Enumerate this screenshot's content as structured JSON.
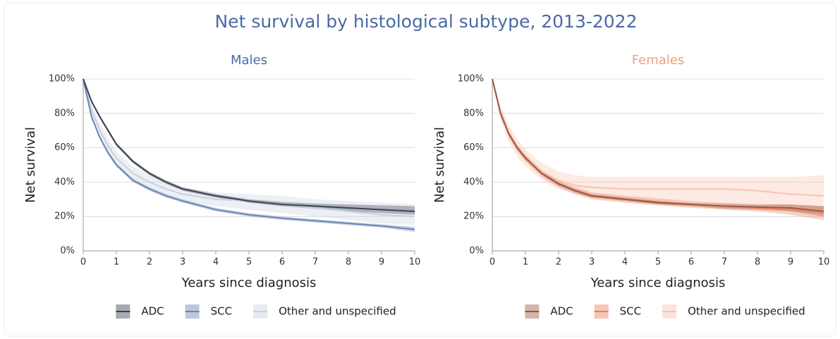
{
  "title": "Net survival by histological subtype, 2013-2022",
  "chart_data": [
    {
      "type": "line",
      "title": "Males",
      "title_color": "#4a6aa5",
      "xlabel": "Years since diagnosis",
      "ylabel": "Net survival",
      "x": [
        0,
        0.25,
        0.5,
        0.75,
        1,
        1.5,
        2,
        2.5,
        3,
        4,
        5,
        6,
        7,
        8,
        9,
        10
      ],
      "xlim": [
        0,
        10
      ],
      "xticks": [
        0,
        1,
        2,
        3,
        4,
        5,
        6,
        7,
        8,
        9,
        10
      ],
      "ylim": [
        0,
        100
      ],
      "yticks": [
        {
          "value": 0,
          "label": "0%"
        },
        {
          "value": 20,
          "label": "20%"
        },
        {
          "value": 40,
          "label": "40%"
        },
        {
          "value": 60,
          "label": "60%"
        },
        {
          "value": 80,
          "label": "80%"
        },
        {
          "value": 100,
          "label": "100%"
        }
      ],
      "grid": true,
      "series": [
        {
          "name": "ADC",
          "color": "#3b4252",
          "values": [
            100,
            87,
            78,
            70,
            62,
            52,
            45,
            40,
            36,
            32,
            29,
            27,
            26,
            25,
            24,
            23
          ],
          "lower": [
            100,
            86,
            77,
            69,
            61,
            51,
            44,
            39,
            35,
            31,
            28,
            26,
            24.5,
            23,
            22,
            21
          ],
          "upper": [
            100,
            88,
            79,
            71,
            63,
            53,
            46,
            41,
            37,
            33,
            30,
            28.5,
            27.5,
            27,
            26.5,
            26
          ]
        },
        {
          "name": "SCC",
          "color": "#6b86b4",
          "values": [
            100,
            78,
            66,
            57,
            50,
            41,
            36,
            32,
            29,
            24,
            21,
            19,
            17.5,
            16,
            14.5,
            12.5
          ],
          "lower": [
            100,
            77,
            65,
            56,
            49,
            40,
            35,
            31,
            28,
            23,
            20,
            18,
            16.5,
            15,
            13.5,
            11
          ],
          "upper": [
            100,
            79,
            67,
            58,
            51,
            42,
            37,
            33,
            30,
            25,
            22,
            20,
            18.5,
            17,
            15.5,
            14
          ]
        },
        {
          "name": "Other and unspecified",
          "color": "#c9d0de",
          "values": [
            100,
            82,
            70,
            61,
            54,
            45,
            40,
            36,
            33,
            30,
            29,
            27,
            25,
            23,
            21,
            20
          ],
          "lower": [
            100,
            79,
            66,
            57,
            50,
            41,
            36,
            32,
            29,
            26,
            24,
            22,
            20,
            18,
            16,
            15
          ],
          "upper": [
            100,
            85,
            74,
            65,
            58,
            49,
            44,
            40,
            37,
            34,
            33,
            32,
            30,
            29,
            28,
            27
          ]
        }
      ]
    },
    {
      "type": "line",
      "title": "Females",
      "title_color": "#f0a080",
      "xlabel": "Years since diagnosis",
      "ylabel": "Net survival",
      "x": [
        0,
        0.25,
        0.5,
        0.75,
        1,
        1.5,
        2,
        2.5,
        3,
        4,
        5,
        6,
        7,
        8,
        9,
        10
      ],
      "xlim": [
        0,
        10
      ],
      "xticks": [
        0,
        1,
        2,
        3,
        4,
        5,
        6,
        7,
        8,
        9,
        10
      ],
      "ylim": [
        0,
        100
      ],
      "yticks": [
        {
          "value": 0,
          "label": "0%"
        },
        {
          "value": 20,
          "label": "20%"
        },
        {
          "value": 40,
          "label": "40%"
        },
        {
          "value": 60,
          "label": "60%"
        },
        {
          "value": 80,
          "label": "80%"
        },
        {
          "value": 100,
          "label": "100%"
        }
      ],
      "grid": true,
      "series": [
        {
          "name": "ADC",
          "color": "#9c5a45",
          "values": [
            100,
            80,
            68,
            60,
            54,
            45,
            39,
            35,
            32,
            30,
            28,
            27,
            26,
            25.5,
            25,
            23
          ],
          "lower": [
            100,
            79,
            67,
            59,
            53,
            44,
            38,
            34,
            31,
            29,
            27,
            26,
            24.5,
            24,
            23,
            20
          ],
          "upper": [
            100,
            81,
            69,
            61,
            55,
            46,
            40,
            36,
            33,
            31,
            29,
            28,
            27.5,
            27,
            27,
            26
          ]
        },
        {
          "name": "SCC",
          "color": "#e8805e",
          "values": [
            100,
            80,
            68,
            60,
            54,
            45,
            39,
            35,
            32,
            30,
            28.5,
            27,
            26,
            25,
            24,
            22
          ],
          "lower": [
            100,
            78,
            66,
            58,
            52,
            43,
            37,
            33,
            30,
            28,
            26.5,
            25,
            24,
            23,
            21,
            18
          ],
          "upper": [
            100,
            82,
            70,
            62,
            56,
            47,
            41,
            37,
            34,
            32,
            30.5,
            29,
            28,
            27,
            27,
            26
          ]
        },
        {
          "name": "Other and unspecified",
          "color": "#f6c3b0",
          "values": [
            100,
            80,
            68,
            60,
            54,
            46,
            41,
            38,
            37,
            36,
            36,
            36,
            36,
            35,
            33,
            32
          ],
          "lower": [
            100,
            76,
            63,
            55,
            49,
            41,
            36,
            33,
            31,
            30,
            29,
            29,
            28,
            27,
            25,
            22
          ],
          "upper": [
            100,
            84,
            73,
            65,
            59,
            51,
            46,
            44,
            43,
            43,
            43,
            43,
            43,
            43,
            43,
            44
          ]
        }
      ]
    }
  ]
}
